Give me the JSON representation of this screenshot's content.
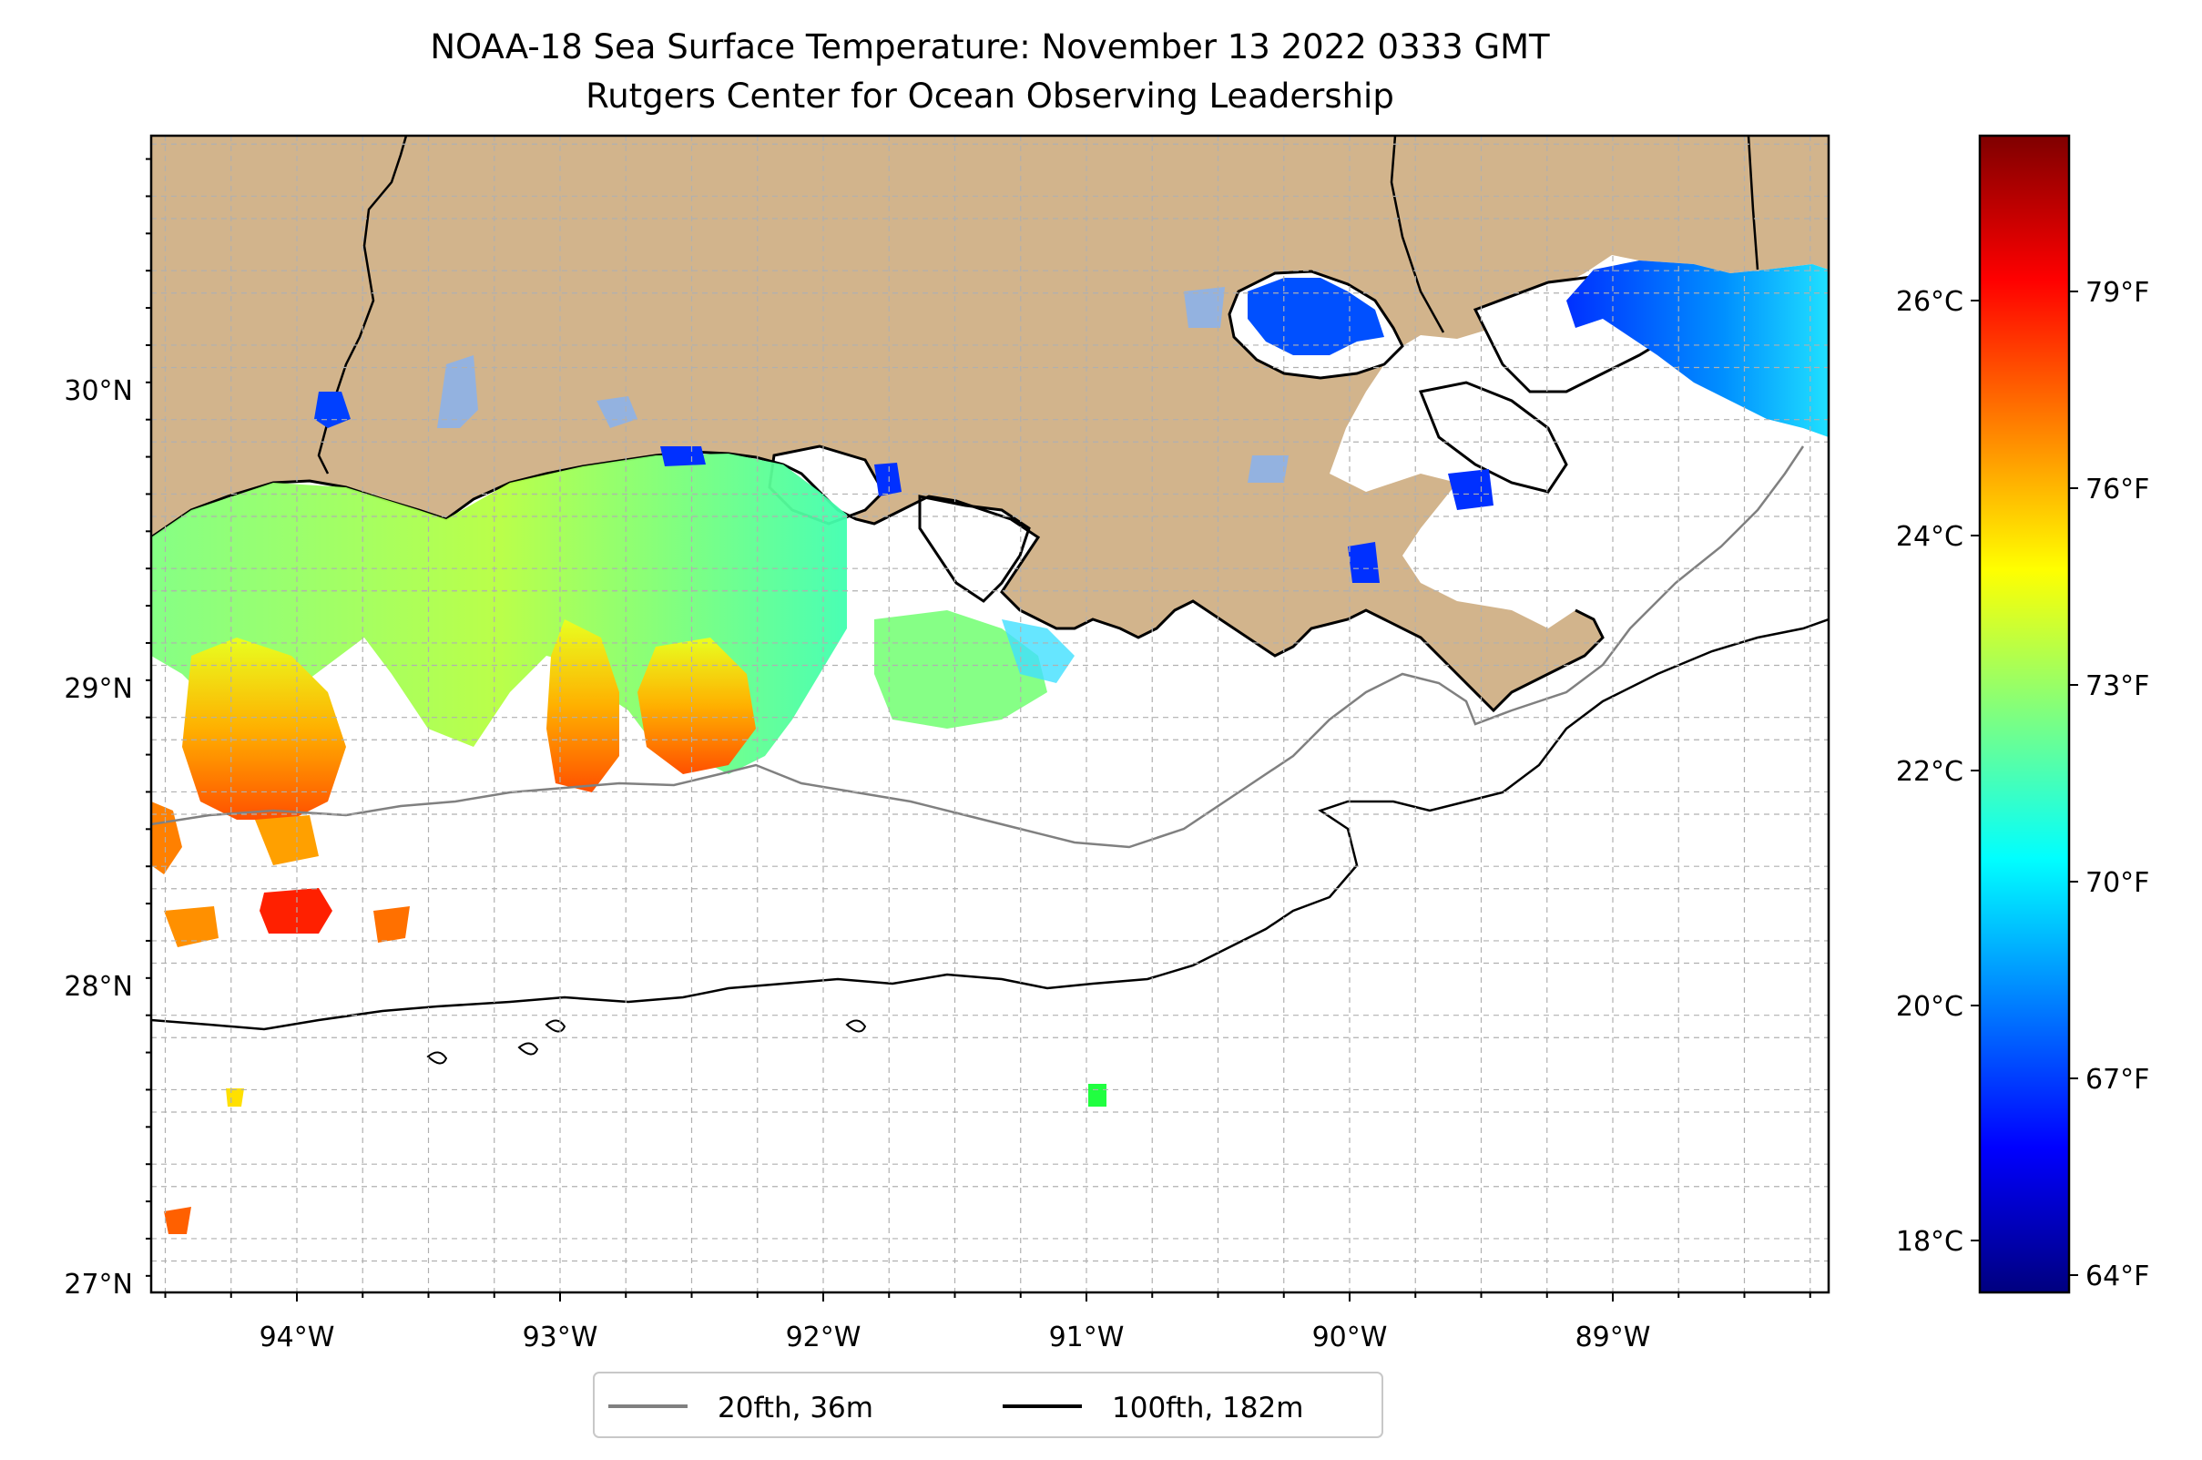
{
  "title": {
    "line1": "NOAA-18 Sea Surface Temperature: November 13 2022 0333 GMT",
    "line2": "Rutgers Center for Ocean Observing Leadership"
  },
  "axes": {
    "x_ticks": [
      "94°W",
      "93°W",
      "92°W",
      "91°W",
      "90°W",
      "89°W"
    ],
    "y_ticks": [
      "30°N",
      "29°N",
      "28°N",
      "27°N"
    ]
  },
  "colorbar": {
    "left_ticks": [
      "26°C",
      "24°C",
      "22°C",
      "20°C",
      "18°C"
    ],
    "right_ticks": [
      "79°F",
      "76°F",
      "73°F",
      "70°F",
      "67°F",
      "64°F"
    ],
    "colormap": [
      "#7f0000",
      "#ff0000",
      "#ff7f00",
      "#ffff00",
      "#7fff7f",
      "#00ffff",
      "#007fff",
      "#0000ff",
      "#00007f"
    ]
  },
  "legend": {
    "items": [
      {
        "label": "20fth, 36m",
        "color": "#808080"
      },
      {
        "label": "100fth, 182m",
        "color": "#000000"
      }
    ]
  },
  "map": {
    "land_color": "#d2b48c",
    "ocean_color": "#ffffff"
  }
}
